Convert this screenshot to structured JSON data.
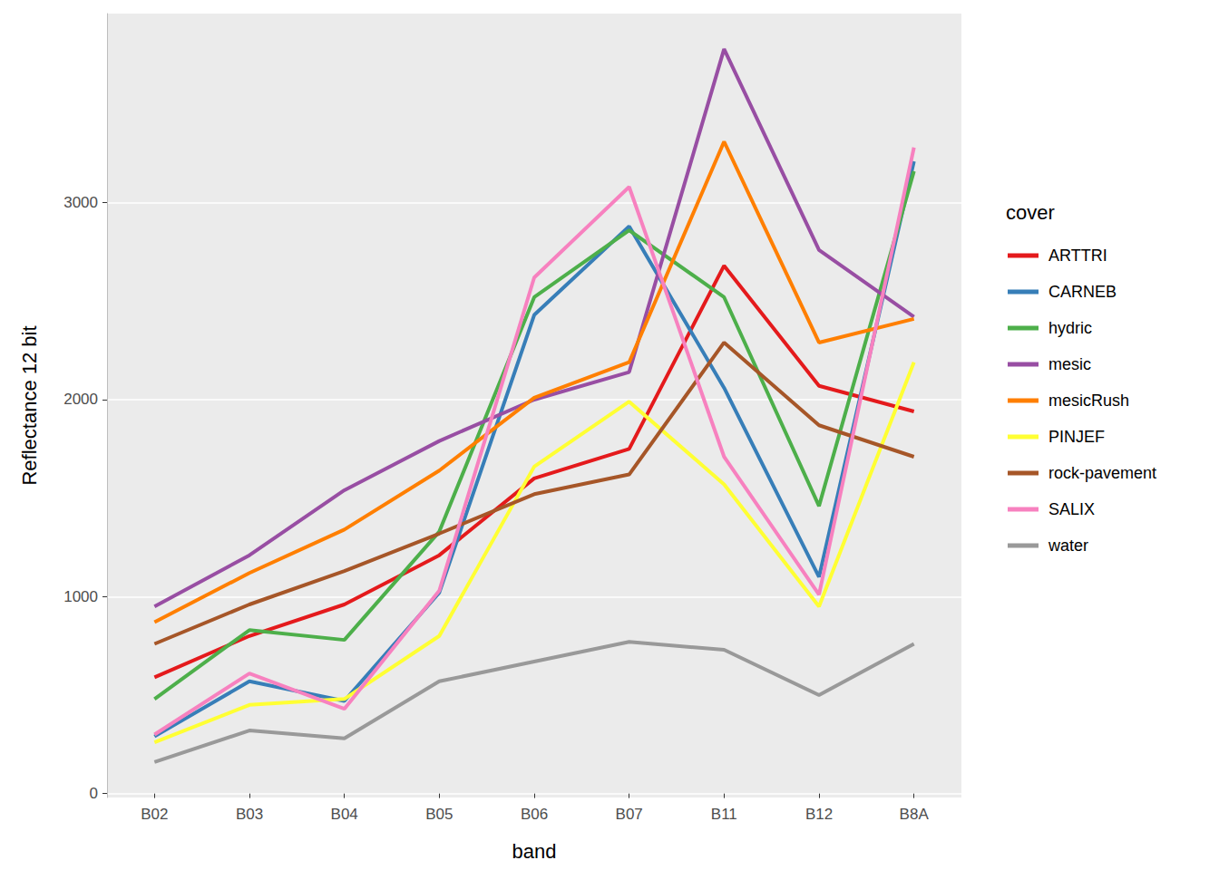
{
  "chart_data": {
    "type": "line",
    "x_label": "band",
    "y_label": "Reflectance 12 bit",
    "legend_title": "cover",
    "legend": "right",
    "grid": true,
    "categories": [
      "B02",
      "B03",
      "B04",
      "B05",
      "B06",
      "B07",
      "B11",
      "B12",
      "B8A"
    ],
    "ylim": [
      -20,
      3960
    ],
    "yticks": [
      0,
      1000,
      2000,
      3000
    ],
    "series": [
      {
        "name": "ARTTRI",
        "color": "#E41A1C",
        "values": [
          590,
          800,
          960,
          1210,
          1600,
          1750,
          2680,
          2070,
          1940
        ]
      },
      {
        "name": "CARNEB",
        "color": "#377EB8",
        "values": [
          290,
          570,
          470,
          1020,
          2430,
          2880,
          2060,
          1100,
          3210
        ]
      },
      {
        "name": "hydric",
        "color": "#4DAF4A",
        "values": [
          480,
          830,
          780,
          1330,
          2520,
          2860,
          2520,
          1460,
          3160
        ]
      },
      {
        "name": "mesic",
        "color": "#984EA3",
        "values": [
          950,
          1210,
          1540,
          1790,
          2000,
          2140,
          3780,
          2760,
          2420
        ]
      },
      {
        "name": "mesicRush",
        "color": "#FF7F00",
        "values": [
          870,
          1120,
          1340,
          1640,
          2010,
          2190,
          3310,
          2290,
          2410
        ]
      },
      {
        "name": "PINJEF",
        "color": "#FFFF33",
        "values": [
          260,
          450,
          480,
          800,
          1660,
          1990,
          1570,
          950,
          2190
        ]
      },
      {
        "name": "rock-pavement",
        "color": "#A65628",
        "values": [
          760,
          960,
          1130,
          1320,
          1520,
          1620,
          2290,
          1870,
          1710
        ]
      },
      {
        "name": "SALIX",
        "color": "#F781BF",
        "values": [
          300,
          610,
          430,
          1030,
          2620,
          3080,
          1710,
          1010,
          3280
        ]
      },
      {
        "name": "water",
        "color": "#999999",
        "values": [
          160,
          320,
          280,
          570,
          670,
          770,
          730,
          500,
          760
        ]
      }
    ]
  }
}
